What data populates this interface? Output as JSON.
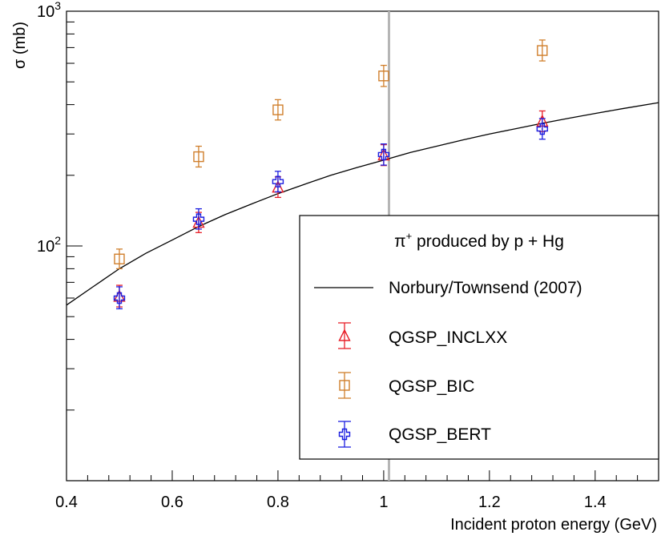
{
  "chart_data": {
    "type": "scatter",
    "xlabel": "Incident proton energy (GeV)",
    "ylabel": "σ (mb)",
    "xlim": [
      0.4,
      1.52
    ],
    "ylim": [
      10,
      1000
    ],
    "yscale": "log",
    "x_ticks": [
      "0.4",
      "0.6",
      "0.8",
      "1",
      "1.2",
      "1.4"
    ],
    "x_tick_values": [
      0.4,
      0.6,
      0.8,
      1.0,
      1.2,
      1.4
    ],
    "y_ticks": [
      {
        "value": 100,
        "base": "10",
        "exp": "2"
      },
      {
        "value": 1000,
        "base": "10",
        "exp": "3"
      }
    ],
    "reference_line_x": 1.01,
    "legend": {
      "title_main": "π",
      "title_sup": "+",
      "title_rest": " produced by p + Hg",
      "position": "right",
      "entries": [
        "Norbury/Townsend (2007)",
        "QGSP_INCLXX",
        "QGSP_BIC",
        "QGSP_BERT"
      ]
    },
    "curve": {
      "name": "Norbury/Townsend (2007)",
      "color": "#000000",
      "x": [
        0.4,
        0.45,
        0.5,
        0.55,
        0.6,
        0.65,
        0.7,
        0.75,
        0.8,
        0.85,
        0.9,
        0.95,
        1.0,
        1.05,
        1.1,
        1.15,
        1.2,
        1.25,
        1.3,
        1.35,
        1.4,
        1.45,
        1.52
      ],
      "y": [
        56,
        67,
        80,
        93,
        106,
        121,
        136,
        151,
        167,
        183,
        200,
        216,
        232,
        250,
        266,
        283,
        300,
        316,
        333,
        350,
        367,
        384,
        408
      ]
    },
    "series": [
      {
        "name": "QGSP_INCLXX",
        "marker": "triangle",
        "color": "#e8202a",
        "x": [
          0.5,
          0.65,
          0.8,
          1.0,
          1.3
        ],
        "y": [
          61,
          126,
          178,
          244,
          340
        ],
        "yerr_low": [
          6,
          12,
          17,
          24,
          33
        ],
        "yerr_high": [
          7,
          13,
          19,
          26,
          36
        ]
      },
      {
        "name": "QGSP_BIC",
        "marker": "square",
        "color": "#d07f2c",
        "x": [
          0.5,
          0.65,
          0.8,
          1.0,
          1.3
        ],
        "y": [
          88,
          240,
          380,
          530,
          680
        ],
        "yerr_low": [
          8,
          23,
          36,
          52,
          66
        ],
        "yerr_high": [
          9,
          26,
          40,
          58,
          74
        ]
      },
      {
        "name": "QGSP_BERT",
        "marker": "cross",
        "color": "#1c1ee0",
        "x": [
          0.5,
          0.65,
          0.8,
          1.0,
          1.3
        ],
        "y": [
          60,
          130,
          188,
          245,
          315
        ],
        "yerr_low": [
          6,
          12,
          18,
          24,
          30
        ],
        "yerr_high": [
          7,
          14,
          20,
          27,
          34
        ]
      }
    ]
  }
}
